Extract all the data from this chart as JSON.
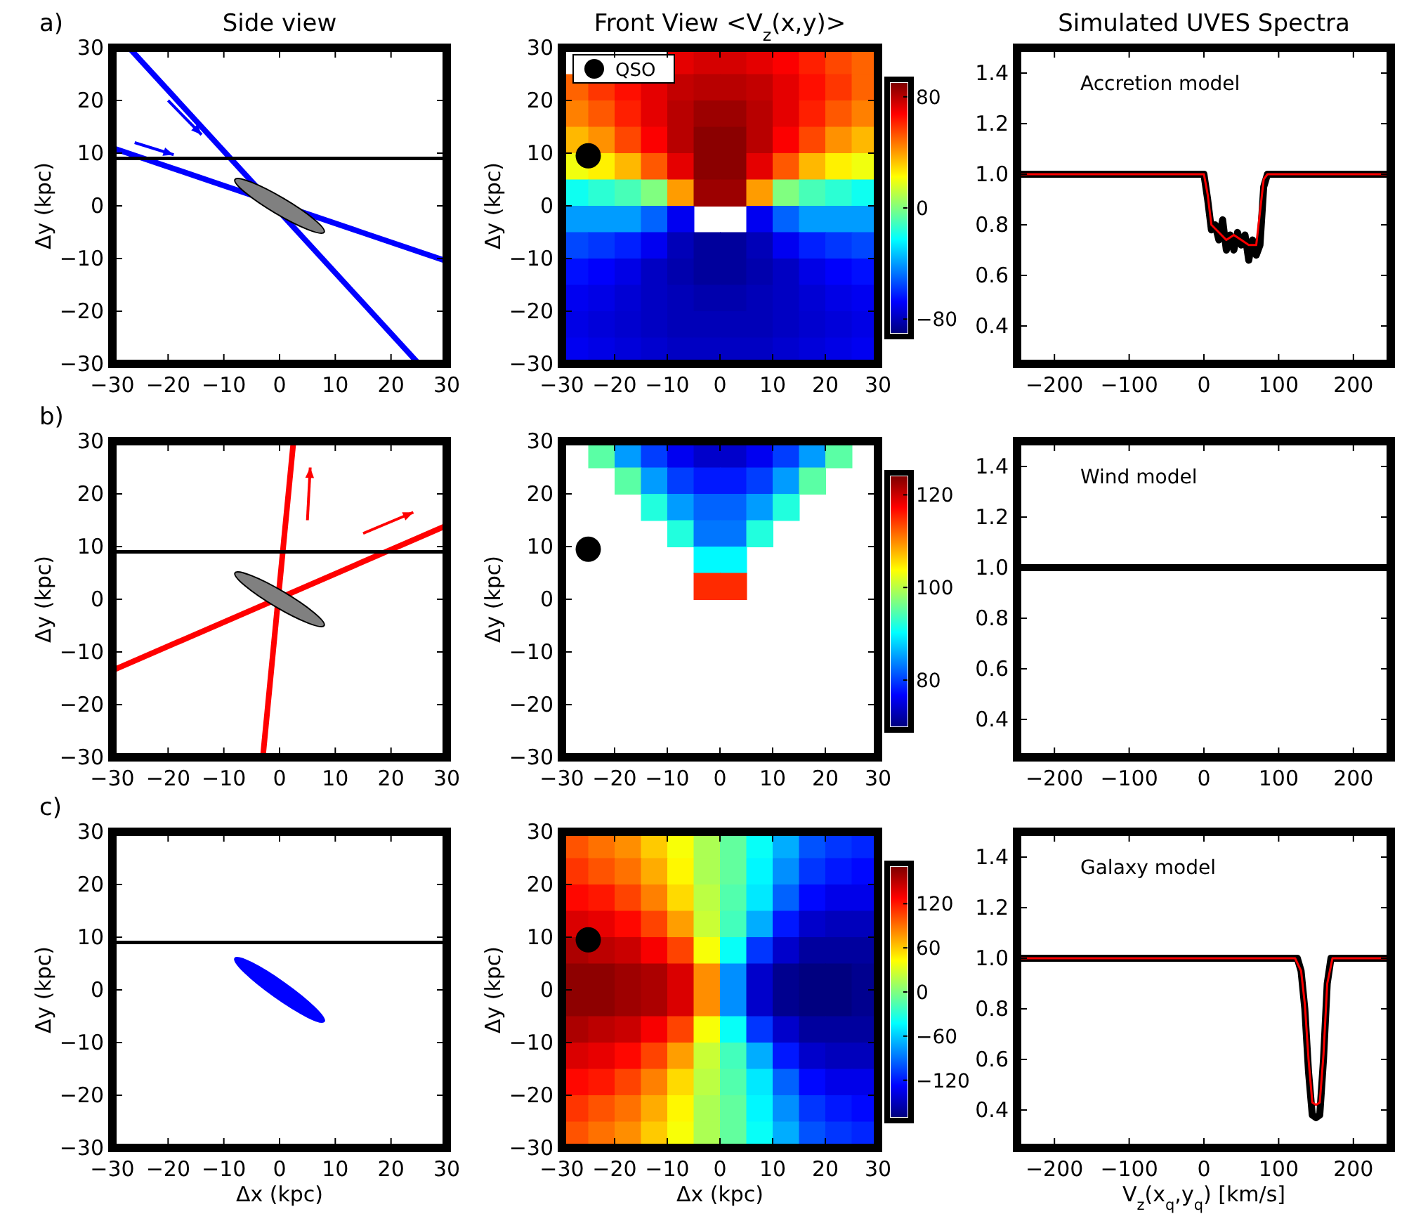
{
  "chart_data": [
    {
      "type": "line",
      "title": "Side view",
      "ylabel": "Δy (kpc)",
      "annotations": [
        "a)"
      ],
      "xlim": [
        -30,
        30
      ],
      "ylim": [
        -30,
        30
      ],
      "xticks": [
        {
          "value": -30,
          "label": "−30"
        },
        {
          "value": -20,
          "label": "−20"
        },
        {
          "value": -10,
          "label": "−10"
        },
        0,
        10,
        20,
        30
      ],
      "yticks": [
        {
          "value": -30,
          "label": "−30"
        },
        {
          "value": -20,
          "label": "−20"
        },
        {
          "value": -10,
          "label": "−10"
        },
        0,
        10,
        20,
        30
      ],
      "series": [
        {
          "color": "#0000ff",
          "x": [
            -27,
            25
          ],
          "values": [
            30,
            -30
          ]
        },
        {
          "color": "#0000ff",
          "x": [
            -30,
            30
          ],
          "values": [
            11,
            -10.5
          ]
        }
      ],
      "ref_lines": [
        {
          "axis": "y",
          "value": 9,
          "color": "#000000"
        }
      ]
    },
    {
      "type": "heatmap",
      "title": "Front View  <V$_{z}$(x,y)>",
      "ylabel": "Δy (kpc)",
      "xlim": [
        -30,
        30
      ],
      "ylim": [
        -30,
        30
      ],
      "xticks": [
        {
          "value": -30,
          "label": "−30"
        },
        {
          "value": -20,
          "label": "−20"
        },
        {
          "value": -10,
          "label": "−10"
        },
        0,
        10,
        20,
        30
      ],
      "yticks": [
        {
          "value": -30,
          "label": "−30"
        },
        {
          "value": -20,
          "label": "−20"
        },
        {
          "value": -10,
          "label": "−10"
        },
        0,
        10,
        20,
        30
      ],
      "x": [
        -27.5,
        -22.5,
        -17.5,
        -12.5,
        -7.5,
        -2.5,
        2.5,
        7.5,
        12.5,
        17.5,
        22.5,
        27.5
      ],
      "y": [
        27.5,
        22.5,
        17.5,
        12.5,
        7.5,
        2.5,
        -2.5,
        -7.5,
        -12.5,
        -17.5,
        -22.5,
        -27.5
      ],
      "cells": [
        [
          null,
          null,
          null,
          null,
          72,
          75,
          75,
          72,
          68,
          62,
          55,
          50
        ],
        [
          50,
          58,
          65,
          72,
          78,
          80,
          80,
          78,
          72,
          65,
          58,
          50
        ],
        [
          45,
          52,
          62,
          72,
          80,
          85,
          85,
          80,
          72,
          62,
          52,
          45
        ],
        [
          35,
          42,
          55,
          68,
          80,
          88,
          88,
          80,
          68,
          55,
          42,
          35
        ],
        [
          20,
          25,
          35,
          52,
          72,
          88,
          88,
          72,
          52,
          35,
          25,
          20
        ],
        [
          -20,
          -15,
          -10,
          0,
          40,
          85,
          85,
          40,
          0,
          -10,
          -15,
          -20
        ],
        [
          -40,
          -40,
          -40,
          -50,
          -70,
          null,
          null,
          -70,
          -50,
          -40,
          -40,
          -40
        ],
        [
          -55,
          -58,
          -62,
          -70,
          -80,
          -85,
          -85,
          -80,
          -70,
          -62,
          -58,
          -55
        ],
        [
          -65,
          -68,
          -72,
          -78,
          -82,
          -85,
          -85,
          -82,
          -78,
          -72,
          -68,
          -65
        ],
        [
          -70,
          -72,
          -75,
          -78,
          -80,
          -82,
          -82,
          -80,
          -78,
          -75,
          -72,
          -70
        ],
        [
          -72,
          -74,
          -76,
          -78,
          -80,
          -80,
          -80,
          -80,
          -78,
          -76,
          -74,
          -72
        ],
        [
          -70,
          -72,
          -74,
          -76,
          -78,
          -78,
          -78,
          -78,
          -76,
          -74,
          -72,
          -70
        ]
      ],
      "clim": [
        -90,
        90
      ],
      "cticks": [
        {
          "value": -80,
          "label": "−80"
        },
        0,
        80
      ],
      "series": [
        {
          "type": "scatter",
          "name": "QSO",
          "color": "#000000",
          "x": [
            -25
          ],
          "values": [
            9.5
          ]
        }
      ],
      "marker": "circle",
      "legend": "top left"
    },
    {
      "type": "line",
      "title": "Simulated UVES Spectra",
      "annotations": [
        "Accretion model"
      ],
      "xlim": [
        -250,
        250
      ],
      "ylim": [
        0.25,
        1.5
      ],
      "xticks": [
        {
          "value": -200,
          "label": "−200"
        },
        {
          "value": -100,
          "label": "−100"
        },
        0,
        100,
        200
      ],
      "yticks": [
        0.4,
        0.6,
        0.8,
        {
          "value": 1,
          "label": "1.0"
        },
        1.2,
        1.4
      ],
      "series": [
        {
          "color": "#000000",
          "x": [
            -250,
            0,
            5,
            10,
            15,
            20,
            25,
            30,
            35,
            40,
            45,
            50,
            55,
            60,
            65,
            70,
            75,
            80,
            85,
            250
          ],
          "values": [
            1,
            1,
            0.9,
            0.78,
            0.8,
            0.74,
            0.82,
            0.7,
            0.76,
            0.7,
            0.77,
            0.72,
            0.76,
            0.66,
            0.74,
            0.68,
            0.72,
            0.95,
            1,
            1
          ]
        },
        {
          "color": "#ff0000",
          "x": [
            -250,
            0,
            5,
            10,
            20,
            30,
            40,
            50,
            60,
            70,
            75,
            80,
            85,
            250
          ],
          "values": [
            1,
            1,
            0.92,
            0.8,
            0.77,
            0.74,
            0.76,
            0.74,
            0.72,
            0.72,
            0.85,
            0.98,
            1,
            1
          ]
        }
      ]
    },
    {
      "type": "line",
      "ylabel": "Δy (kpc)",
      "annotations": [
        "b)"
      ],
      "xlim": [
        -30,
        30
      ],
      "ylim": [
        -30,
        30
      ],
      "xticks": [
        {
          "value": -30,
          "label": "−30"
        },
        {
          "value": -20,
          "label": "−20"
        },
        {
          "value": -10,
          "label": "−10"
        },
        0,
        10,
        20,
        30
      ],
      "yticks": [
        {
          "value": -30,
          "label": "−30"
        },
        {
          "value": -20,
          "label": "−20"
        },
        {
          "value": -10,
          "label": "−10"
        },
        0,
        10,
        20,
        30
      ],
      "series": [
        {
          "color": "#ff0000",
          "x": [
            -3,
            2.5
          ],
          "values": [
            -30,
            30
          ]
        },
        {
          "color": "#ff0000",
          "x": [
            -30,
            30
          ],
          "values": [
            -13.5,
            14
          ]
        }
      ],
      "ref_lines": [
        {
          "axis": "y",
          "value": 9,
          "color": "#000000"
        }
      ]
    },
    {
      "type": "heatmap",
      "ylabel": "Δy (kpc)",
      "xlim": [
        -30,
        30
      ],
      "ylim": [
        -30,
        30
      ],
      "xticks": [
        {
          "value": -30,
          "label": "−30"
        },
        {
          "value": -20,
          "label": "−20"
        },
        {
          "value": -10,
          "label": "−10"
        },
        0,
        10,
        20,
        30
      ],
      "yticks": [
        {
          "value": -30,
          "label": "−30"
        },
        {
          "value": -20,
          "label": "−20"
        },
        {
          "value": -10,
          "label": "−10"
        },
        0,
        10,
        20,
        30
      ],
      "x": [
        -22.5,
        -17.5,
        -12.5,
        -7.5,
        -2.5,
        2.5,
        7.5,
        12.5,
        17.5,
        22.5
      ],
      "y": [
        27.5,
        22.5,
        17.5,
        12.5,
        7.5,
        2.5
      ],
      "cells": [
        [
          95,
          85,
          80,
          76,
          74,
          74,
          76,
          80,
          85,
          95
        ],
        [
          null,
          95,
          85,
          80,
          78,
          78,
          80,
          85,
          95,
          null
        ],
        [
          null,
          null,
          92,
          85,
          82,
          82,
          85,
          92,
          null,
          null
        ],
        [
          null,
          null,
          null,
          92,
          83,
          83,
          92,
          null,
          null,
          null
        ],
        [
          null,
          null,
          null,
          null,
          90,
          90,
          null,
          null,
          null,
          null
        ],
        [
          null,
          null,
          null,
          null,
          115,
          115,
          null,
          null,
          null,
          null
        ]
      ],
      "clim": [
        70,
        124
      ],
      "cticks": [
        80,
        100,
        120
      ],
      "series": [
        {
          "type": "scatter",
          "color": "#000000",
          "x": [
            -25
          ],
          "values": [
            9.5
          ]
        }
      ],
      "marker": "circle"
    },
    {
      "type": "line",
      "annotations": [
        "Wind model"
      ],
      "xlim": [
        -250,
        250
      ],
      "ylim": [
        0.25,
        1.5
      ],
      "xticks": [
        {
          "value": -200,
          "label": "−200"
        },
        {
          "value": -100,
          "label": "−100"
        },
        0,
        100,
        200
      ],
      "yticks": [
        0.4,
        0.6,
        0.8,
        {
          "value": 1,
          "label": "1.0"
        },
        1.2,
        1.4
      ],
      "series": [
        {
          "color": "#000000",
          "x": [
            -250,
            250
          ],
          "values": [
            1,
            1
          ]
        }
      ]
    },
    {
      "type": "line",
      "xlabel": "Δx (kpc)",
      "ylabel": "Δy (kpc)",
      "annotations": [
        "c)"
      ],
      "xlim": [
        -30,
        30
      ],
      "ylim": [
        -30,
        30
      ],
      "xticks": [
        {
          "value": -30,
          "label": "−30"
        },
        {
          "value": -20,
          "label": "−20"
        },
        {
          "value": -10,
          "label": "−10"
        },
        0,
        10,
        20,
        30
      ],
      "yticks": [
        {
          "value": -30,
          "label": "−30"
        },
        {
          "value": -20,
          "label": "−20"
        },
        {
          "value": -10,
          "label": "−10"
        },
        0,
        10,
        20,
        30
      ],
      "ref_lines": [
        {
          "axis": "y",
          "value": 9,
          "color": "#000000"
        }
      ]
    },
    {
      "type": "heatmap",
      "xlabel": "Δx (kpc)",
      "ylabel": "Δy (kpc)",
      "xlim": [
        -30,
        30
      ],
      "ylim": [
        -30,
        30
      ],
      "xticks": [
        {
          "value": -30,
          "label": "−30"
        },
        {
          "value": -20,
          "label": "−20"
        },
        {
          "value": -10,
          "label": "−10"
        },
        0,
        10,
        20,
        30
      ],
      "yticks": [
        {
          "value": -30,
          "label": "−30"
        },
        {
          "value": -20,
          "label": "−20"
        },
        {
          "value": -10,
          "label": "−10"
        },
        0,
        10,
        20,
        30
      ],
      "x": [
        -27.5,
        -22.5,
        -17.5,
        -12.5,
        -7.5,
        -2.5,
        2.5,
        7.5,
        12.5,
        17.5,
        22.5,
        27.5
      ],
      "y": [
        27.5,
        22.5,
        17.5,
        12.5,
        7.5,
        2.5,
        -2.5,
        -7.5,
        -12.5,
        -17.5,
        -22.5,
        -27.5
      ],
      "cells": [
        [
          100,
          90,
          80,
          60,
          40,
          15,
          -10,
          -40,
          -70,
          -100,
          -110,
          -115
        ],
        [
          110,
          100,
          90,
          70,
          45,
          15,
          -10,
          -45,
          -80,
          -110,
          -120,
          -125
        ],
        [
          125,
          120,
          105,
          85,
          55,
          20,
          -15,
          -50,
          -95,
          -125,
          -135,
          -135
        ],
        [
          140,
          135,
          125,
          105,
          75,
          25,
          -20,
          -70,
          -120,
          -145,
          -150,
          -150
        ],
        [
          155,
          150,
          145,
          130,
          105,
          40,
          -40,
          -110,
          -145,
          -160,
          -160,
          -160
        ],
        [
          165,
          165,
          160,
          155,
          140,
          80,
          -80,
          -145,
          -165,
          -170,
          -170,
          -165
        ],
        [
          165,
          165,
          160,
          155,
          140,
          80,
          -80,
          -145,
          -165,
          -170,
          -170,
          -165
        ],
        [
          155,
          150,
          145,
          130,
          105,
          40,
          -40,
          -110,
          -145,
          -160,
          -160,
          -160
        ],
        [
          140,
          135,
          125,
          105,
          75,
          25,
          -20,
          -70,
          -120,
          -145,
          -150,
          -150
        ],
        [
          125,
          120,
          105,
          85,
          55,
          20,
          -15,
          -50,
          -95,
          -125,
          -135,
          -135
        ],
        [
          110,
          100,
          90,
          70,
          45,
          15,
          -10,
          -45,
          -80,
          -110,
          -120,
          -125
        ],
        [
          100,
          90,
          80,
          60,
          40,
          15,
          -10,
          -40,
          -70,
          -100,
          -110,
          -115
        ]
      ],
      "clim": [
        -170,
        170
      ],
      "cticks": [
        {
          "value": -120,
          "label": "−120"
        },
        {
          "value": -60,
          "label": "−60"
        },
        0,
        60,
        120
      ],
      "series": [
        {
          "type": "scatter",
          "color": "#000000",
          "x": [
            -25
          ],
          "values": [
            9.5
          ]
        }
      ],
      "marker": "circle"
    },
    {
      "type": "line",
      "xlabel": "V$_{z}$(x$_{q}$,y$_{q}$) [km/s]",
      "annotations": [
        "Galaxy model"
      ],
      "xlim": [
        -250,
        250
      ],
      "ylim": [
        0.25,
        1.5
      ],
      "xticks": [
        {
          "value": -200,
          "label": "−200"
        },
        {
          "value": -100,
          "label": "−100"
        },
        0,
        100,
        200
      ],
      "yticks": [
        0.4,
        0.6,
        0.8,
        {
          "value": 1,
          "label": "1.0"
        },
        1.2,
        1.4
      ],
      "series": [
        {
          "color": "#000000",
          "x": [
            -250,
            125,
            130,
            135,
            140,
            145,
            150,
            155,
            160,
            165,
            170,
            250
          ],
          "values": [
            1,
            1,
            0.95,
            0.8,
            0.55,
            0.38,
            0.37,
            0.38,
            0.6,
            0.9,
            1,
            1
          ]
        },
        {
          "color": "#ff0000",
          "x": [
            -250,
            122,
            130,
            135,
            140,
            145,
            150,
            155,
            160,
            165,
            172,
            250
          ],
          "values": [
            1,
            1,
            0.95,
            0.82,
            0.6,
            0.43,
            0.42,
            0.43,
            0.62,
            0.9,
            1,
            1
          ]
        }
      ]
    }
  ]
}
